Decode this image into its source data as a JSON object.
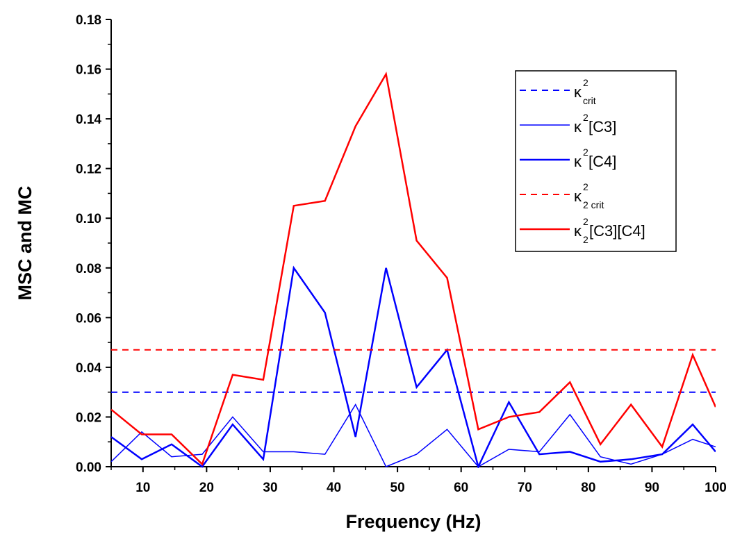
{
  "chart_data": {
    "type": "line",
    "xlabel": "Frequency (Hz)",
    "ylabel": "MSC and MC",
    "xlim": [
      5,
      100
    ],
    "ylim": [
      0,
      0.18
    ],
    "x_ticks": [
      "10",
      "20",
      "30",
      "40",
      "50",
      "60",
      "70",
      "80",
      "90",
      "100"
    ],
    "y_ticks": [
      "0.00",
      "0.02",
      "0.04",
      "0.06",
      "0.08",
      "0.10",
      "0.12",
      "0.14",
      "0.16",
      "0.18"
    ],
    "grid": false,
    "legend_position": "top-right",
    "x": [
      5,
      9.8,
      14.5,
      19.3,
      24.1,
      28.9,
      33.7,
      38.6,
      43.4,
      48.2,
      53,
      57.8,
      62.7,
      67.5,
      72.3,
      77.1,
      81.9,
      86.7,
      91.6,
      96.4,
      100
    ],
    "series": [
      {
        "name": "κ²crit",
        "legend": {
          "symbol": "κ",
          "sup": "2",
          "sub": "crit",
          "main": ""
        },
        "style": "dashed",
        "color": "#0000ff",
        "width": 2,
        "values": [
          0.03,
          0.03,
          0.03,
          0.03,
          0.03,
          0.03,
          0.03,
          0.03,
          0.03,
          0.03,
          0.03,
          0.03,
          0.03,
          0.03,
          0.03,
          0.03,
          0.03,
          0.03,
          0.03,
          0.03,
          0.03
        ]
      },
      {
        "name": "κ²[C3]",
        "legend": {
          "symbol": "κ",
          "sup": "2",
          "sub": "",
          "main": "[C3]"
        },
        "style": "solid",
        "color": "#0000ff",
        "width": 1.5,
        "values": [
          0.002,
          0.014,
          0.004,
          0.005,
          0.02,
          0.006,
          0.006,
          0.005,
          0.025,
          0.0,
          0.005,
          0.015,
          0.0,
          0.007,
          0.006,
          0.021,
          0.004,
          0.001,
          0.005,
          0.011,
          0.008
        ]
      },
      {
        "name": "κ²[C4]",
        "legend": {
          "symbol": "κ",
          "sup": "2",
          "sub": "",
          "main": "[C4]"
        },
        "style": "solid",
        "color": "#0000ff",
        "width": 2.5,
        "values": [
          0.012,
          0.003,
          0.009,
          0.0,
          0.017,
          0.003,
          0.08,
          0.062,
          0.012,
          0.08,
          0.032,
          0.047,
          0.0,
          0.026,
          0.005,
          0.006,
          0.002,
          0.003,
          0.005,
          0.017,
          0.006
        ]
      },
      {
        "name": "κ²2 crit",
        "legend": {
          "symbol": "κ",
          "sup": "2",
          "sub": "2 crit",
          "main": ""
        },
        "style": "dashed",
        "color": "#ff0000",
        "width": 2,
        "values": [
          0.047,
          0.047,
          0.047,
          0.047,
          0.047,
          0.047,
          0.047,
          0.047,
          0.047,
          0.047,
          0.047,
          0.047,
          0.047,
          0.047,
          0.047,
          0.047,
          0.047,
          0.047,
          0.047,
          0.047,
          0.047
        ]
      },
      {
        "name": "κ²2[C3][C4]",
        "legend": {
          "symbol": "κ",
          "sup": "2",
          "sub": "2",
          "main": "[C3][C4]"
        },
        "style": "solid",
        "color": "#ff0000",
        "width": 2.5,
        "values": [
          0.023,
          0.013,
          0.013,
          0.001,
          0.037,
          0.035,
          0.105,
          0.107,
          0.137,
          0.158,
          0.091,
          0.076,
          0.015,
          0.02,
          0.022,
          0.034,
          0.009,
          0.025,
          0.008,
          0.045,
          0.024
        ]
      }
    ]
  }
}
